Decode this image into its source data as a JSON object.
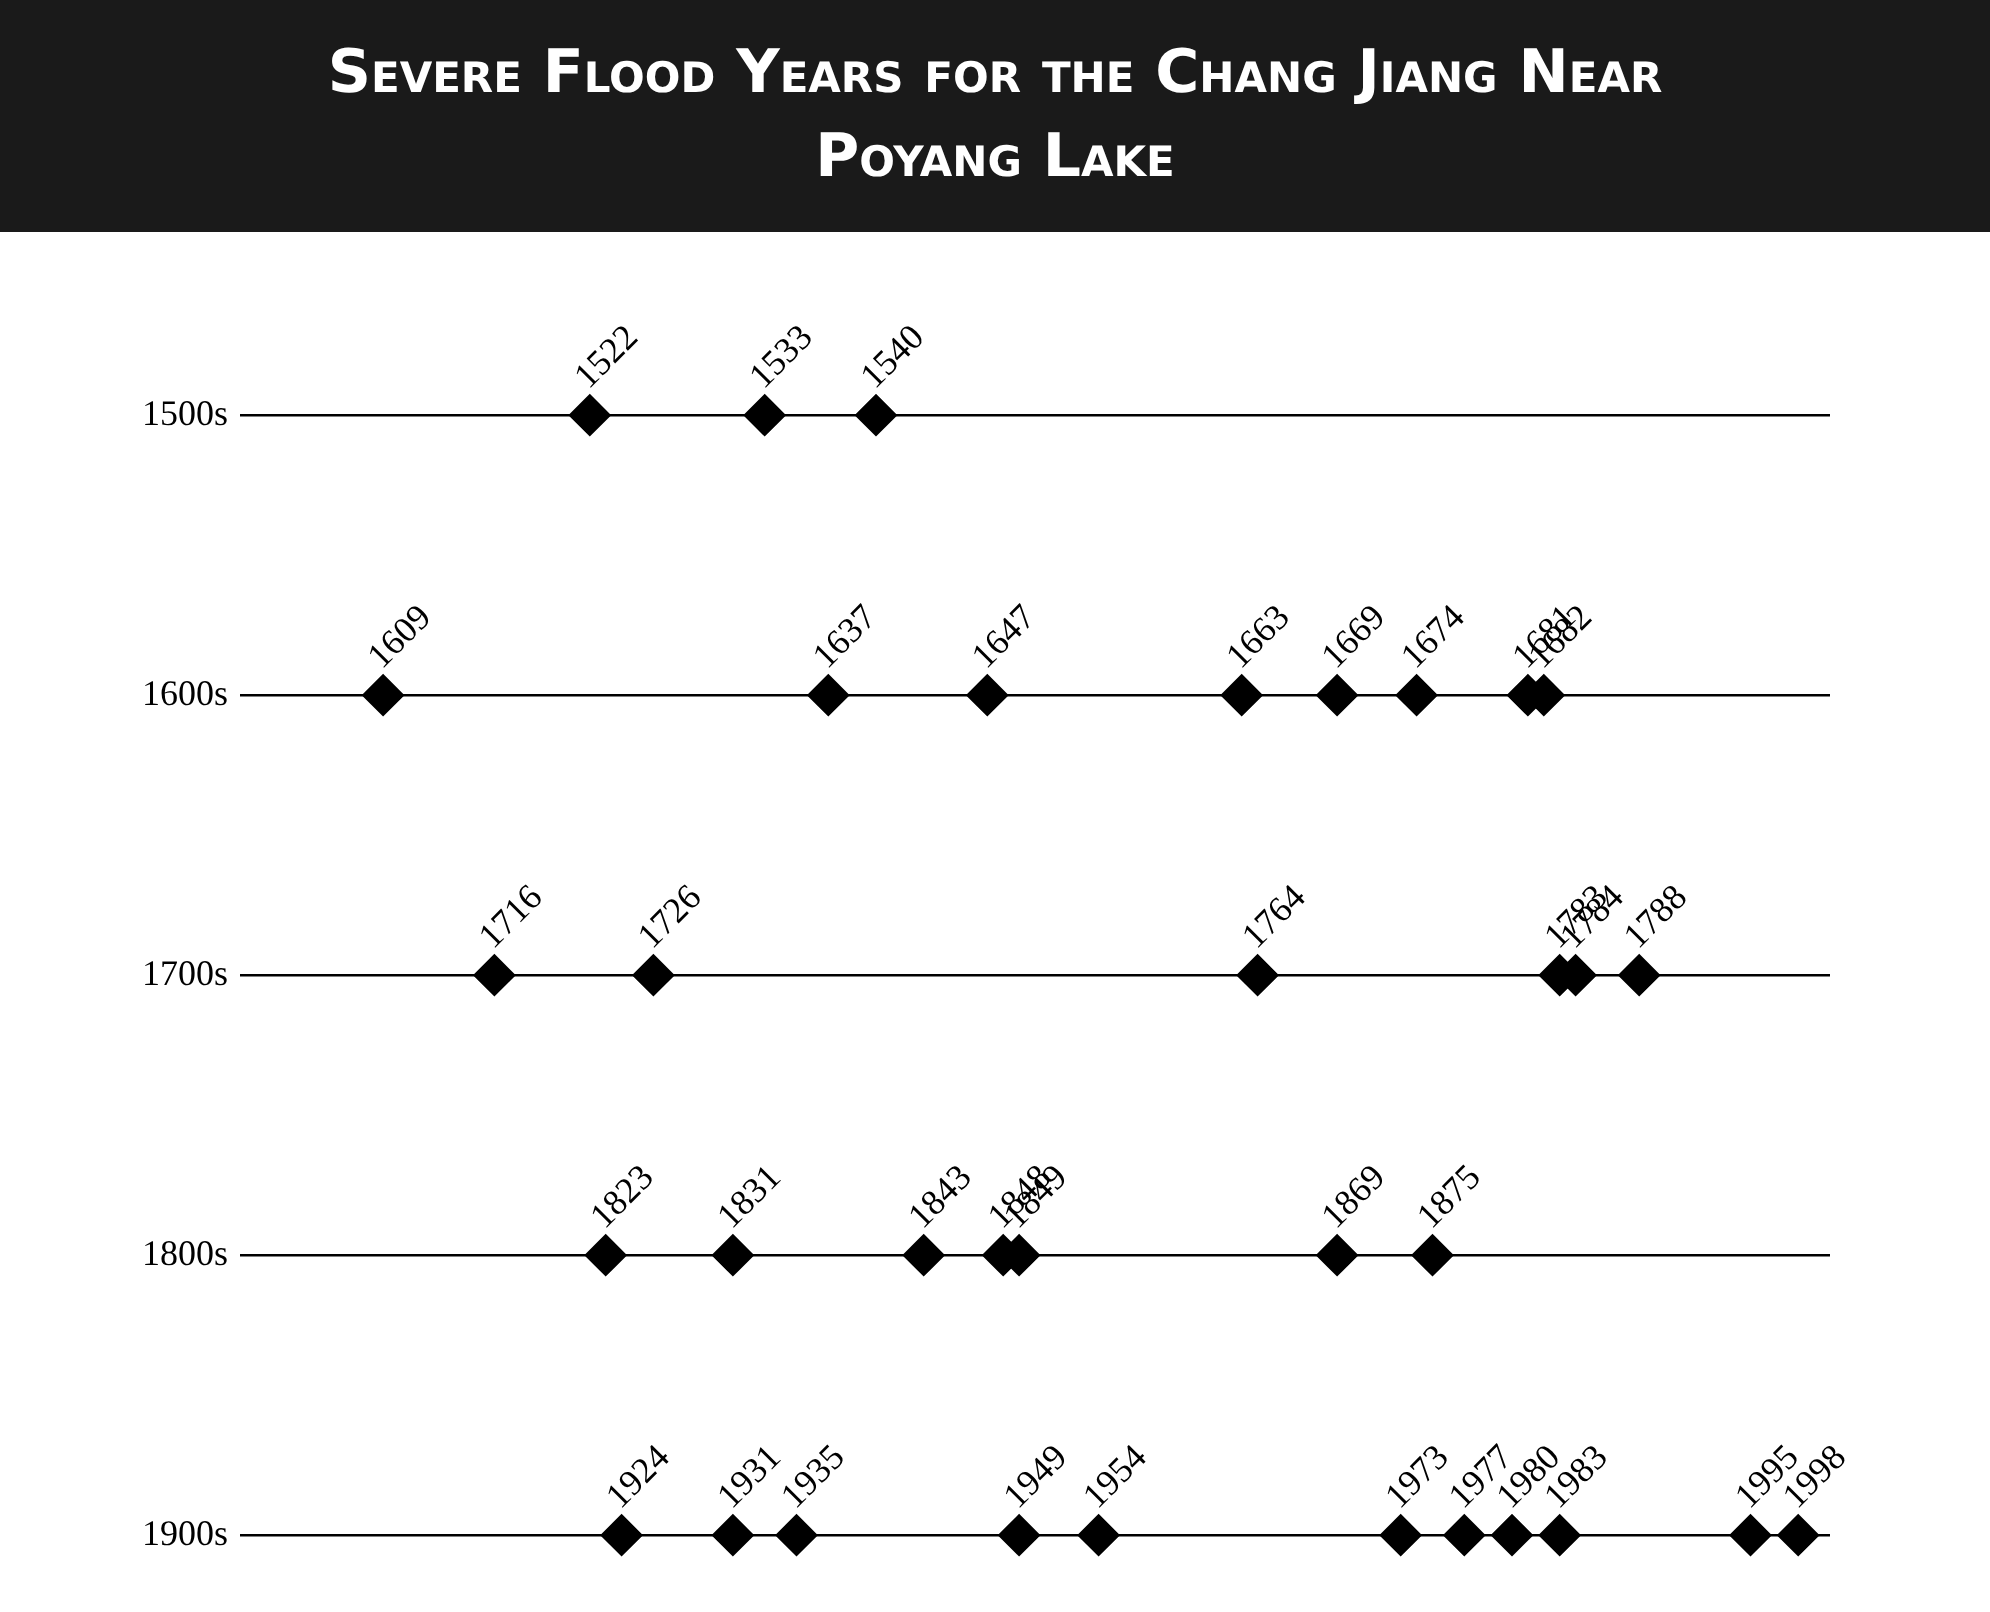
{
  "chart_data": [
    {
      "type": "scatter",
      "title": "Severe Flood Years for the Chang Jiang Near Poyang Lake",
      "orientation": "horizontal",
      "categories": [
        "1500s"
      ],
      "xlim": [
        1500,
        1600
      ],
      "tick_labels": "y",
      "marker": "diamond",
      "data_labels": true,
      "series": [
        {
          "color": "#000000",
          "x": [
            "1500s",
            "1500s",
            "1500s"
          ],
          "values": [
            1522,
            1533,
            1540
          ]
        }
      ]
    },
    {
      "type": "scatter",
      "orientation": "horizontal",
      "categories": [
        "1600s"
      ],
      "xlim": [
        1600,
        1700
      ],
      "tick_labels": "y",
      "marker": "diamond",
      "data_labels": true,
      "series": [
        {
          "color": "#000000",
          "x": [
            "1600s",
            "1600s",
            "1600s",
            "1600s",
            "1600s",
            "1600s",
            "1600s",
            "1600s"
          ],
          "values": [
            1609,
            1637,
            1647,
            1663,
            1669,
            1674,
            1681,
            1682
          ]
        }
      ]
    },
    {
      "type": "scatter",
      "orientation": "horizontal",
      "categories": [
        "1700s"
      ],
      "xlim": [
        1700,
        1800
      ],
      "tick_labels": "y",
      "marker": "diamond",
      "data_labels": true,
      "series": [
        {
          "color": "#000000",
          "x": [
            "1700s",
            "1700s",
            "1700s",
            "1700s",
            "1700s",
            "1700s"
          ],
          "values": [
            1716,
            1726,
            1764,
            1783,
            1784,
            1788
          ]
        }
      ]
    },
    {
      "type": "scatter",
      "orientation": "horizontal",
      "categories": [
        "1800s"
      ],
      "xlim": [
        1800,
        1900
      ],
      "tick_labels": "y",
      "marker": "diamond",
      "data_labels": true,
      "series": [
        {
          "color": "#000000",
          "x": [
            "1800s",
            "1800s",
            "1800s",
            "1800s",
            "1800s",
            "1800s",
            "1800s"
          ],
          "values": [
            1823,
            1831,
            1843,
            1848,
            1849,
            1869,
            1875
          ]
        }
      ]
    },
    {
      "type": "scatter",
      "orientation": "horizontal",
      "categories": [
        "1900s"
      ],
      "xlim": [
        1900,
        2000
      ],
      "tick_labels": "y",
      "marker": "diamond",
      "data_labels": true,
      "series": [
        {
          "color": "#000000",
          "x": [
            "1900s",
            "1900s",
            "1900s",
            "1900s",
            "1900s",
            "1900s",
            "1900s",
            "1900s",
            "1900s",
            "1900s",
            "1900s"
          ],
          "values": [
            1924,
            1931,
            1935,
            1949,
            1954,
            1973,
            1977,
            1980,
            1983,
            1995,
            1998
          ]
        }
      ]
    }
  ]
}
